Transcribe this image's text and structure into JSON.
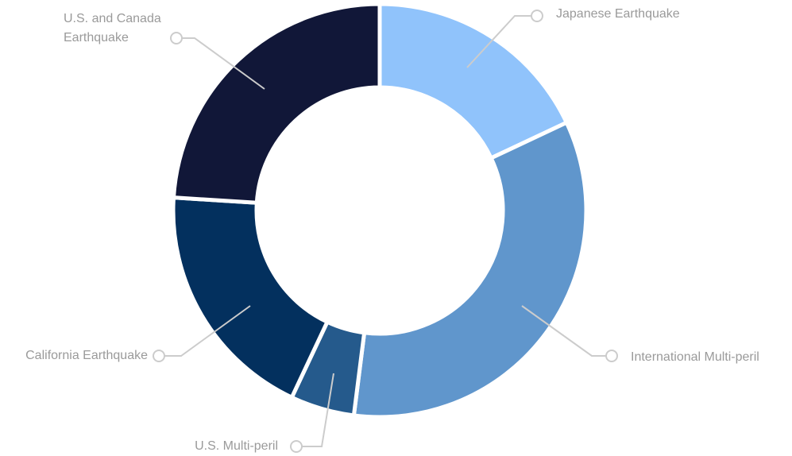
{
  "chart_data": {
    "type": "donut",
    "categories": [
      "Japanese Earthquake",
      "International Multi-peril",
      "U.S. Multi-peril",
      "California Earthquake",
      "U.S. and Canada Earthquake"
    ],
    "values": [
      18,
      34,
      5,
      19,
      24
    ],
    "colors": [
      "#90c3fb",
      "#6096cc",
      "#255a8c",
      "#03305e",
      "#111738"
    ]
  }
}
